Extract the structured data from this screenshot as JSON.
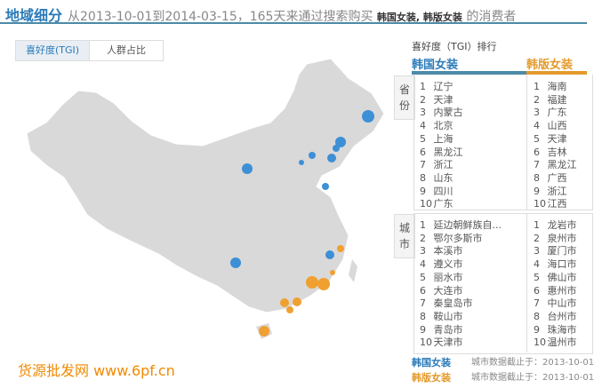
{
  "header": {
    "title": "地域细分",
    "desc": "从2013-10-01到2014-03-15，165天来通过搜索购买",
    "keywords": "韩国女装, 韩版女装",
    "suffix": "的消费者"
  },
  "tabs": [
    {
      "label": "喜好度(TGI)",
      "active": true
    },
    {
      "label": "人群占比",
      "active": false
    }
  ],
  "ranking": {
    "title": "喜好度（TGI）排行",
    "series": [
      {
        "name": "韩国女装",
        "color": "#2b7ab8"
      },
      {
        "name": "韩版女装",
        "color": "#e39a2b"
      }
    ],
    "province_label": "省份",
    "city_label": "城市",
    "provinces": {
      "a": [
        "辽宁",
        "天津",
        "内蒙古",
        "北京",
        "上海",
        "黑龙江",
        "浙江",
        "山东",
        "四川",
        "广东"
      ],
      "b": [
        "海南",
        "福建",
        "广东",
        "山西",
        "天津",
        "吉林",
        "黑龙江",
        "广西",
        "浙江",
        "江西"
      ]
    },
    "cities": {
      "a": [
        "延边朝鲜族自...",
        "鄂尔多斯市",
        "本溪市",
        "遵义市",
        "丽水市",
        "大连市",
        "秦皇岛市",
        "鞍山市",
        "青岛市",
        "天津市"
      ],
      "b": [
        "龙岩市",
        "泉州市",
        "厦门市",
        "海口市",
        "佛山市",
        "惠州市",
        "中山市",
        "台州市",
        "珠海市",
        "温州市"
      ]
    }
  },
  "footer": [
    {
      "name": "韩国女装",
      "note": "城市数据截止于：2013-10-01"
    },
    {
      "name": "韩版女装",
      "note": "城市数据截止于：2013-10-01"
    }
  ],
  "watermark": "货源批发网 www.6pf.cn",
  "map_colors": {
    "land": "#d9d9d9",
    "blue": "#3d8fd6",
    "orange": "#f0a030"
  }
}
